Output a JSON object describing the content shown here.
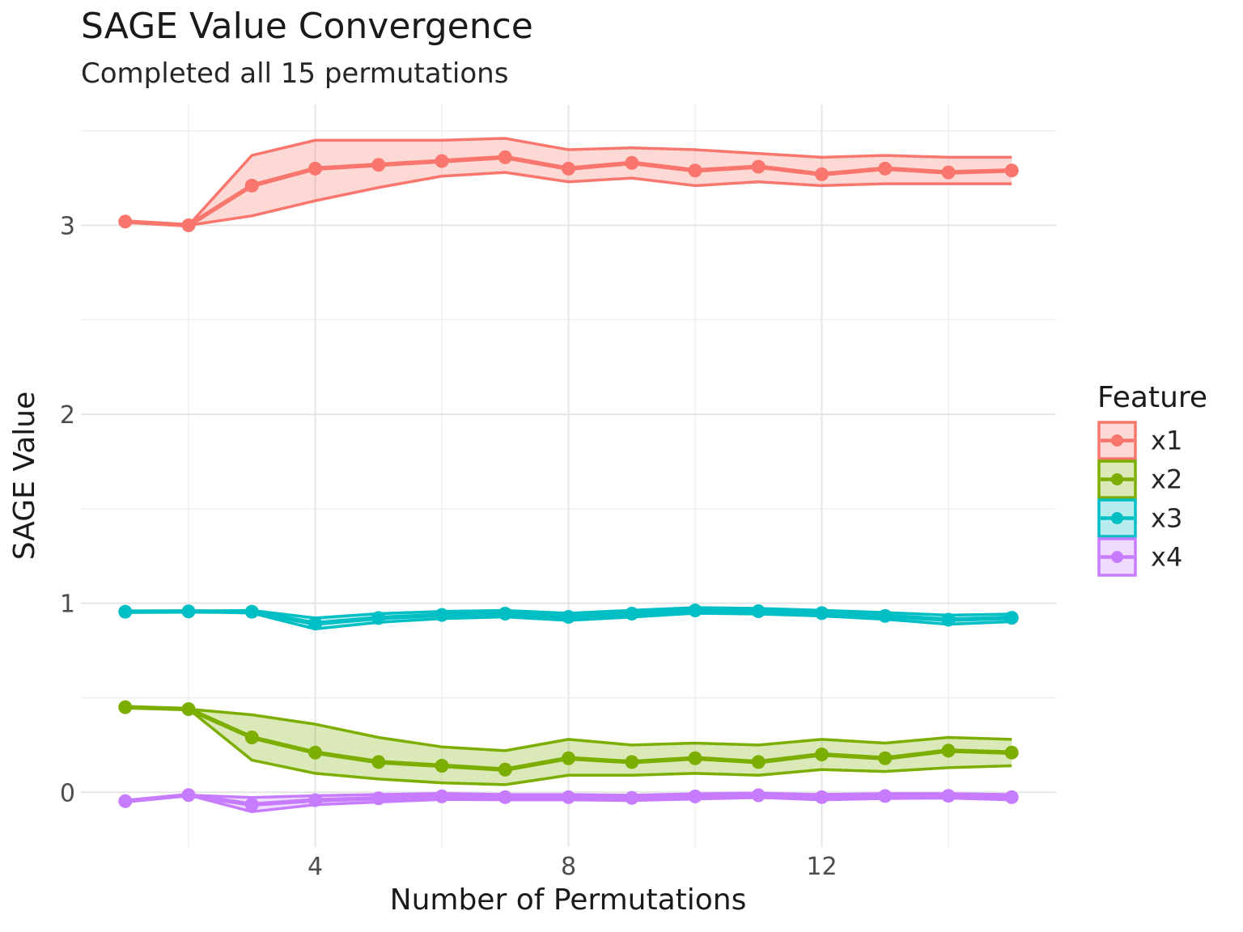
{
  "chart_data": {
    "type": "line",
    "title": "SAGE Value Convergence",
    "subtitle": "Completed all 15 permutations",
    "xlabel": "Number of Permutations",
    "ylabel": "SAGE Value",
    "legend_title": "Feature",
    "legend_position": "right",
    "grid": true,
    "xlim": [
      0.3,
      15.7
    ],
    "ylim": [
      -0.29,
      3.64
    ],
    "x_major_ticks": [
      4,
      8,
      12
    ],
    "x_minor_gridlines": [
      2,
      6,
      10,
      14
    ],
    "y_major_ticks": [
      0,
      1,
      2,
      3
    ],
    "y_minor_gridlines": [
      0.5,
      1.5,
      2.5,
      3.5
    ],
    "x": [
      1,
      2,
      3,
      4,
      5,
      6,
      7,
      8,
      9,
      10,
      11,
      12,
      13,
      14,
      15
    ],
    "series": [
      {
        "name": "x1",
        "color": "#F8766D",
        "mean": [
          3.02,
          3.0,
          3.21,
          3.3,
          3.32,
          3.34,
          3.36,
          3.3,
          3.33,
          3.29,
          3.31,
          3.27,
          3.3,
          3.28,
          3.29
        ],
        "upper": [
          3.02,
          3.0,
          3.37,
          3.45,
          3.45,
          3.45,
          3.46,
          3.4,
          3.41,
          3.4,
          3.38,
          3.36,
          3.37,
          3.36,
          3.36
        ],
        "lower": [
          3.02,
          3.0,
          3.05,
          3.13,
          3.2,
          3.26,
          3.28,
          3.23,
          3.25,
          3.21,
          3.23,
          3.21,
          3.22,
          3.22,
          3.22
        ]
      },
      {
        "name": "x2",
        "color": "#7CAE00",
        "mean": [
          0.45,
          0.44,
          0.29,
          0.21,
          0.16,
          0.14,
          0.12,
          0.18,
          0.16,
          0.18,
          0.16,
          0.2,
          0.18,
          0.22,
          0.21
        ],
        "upper": [
          0.45,
          0.44,
          0.41,
          0.36,
          0.29,
          0.24,
          0.22,
          0.28,
          0.25,
          0.26,
          0.25,
          0.28,
          0.26,
          0.29,
          0.28
        ],
        "lower": [
          0.45,
          0.44,
          0.17,
          0.1,
          0.07,
          0.05,
          0.04,
          0.09,
          0.09,
          0.1,
          0.09,
          0.12,
          0.11,
          0.13,
          0.14
        ]
      },
      {
        "name": "x3",
        "color": "#00BFC4",
        "mean": [
          0.955,
          0.957,
          0.955,
          0.893,
          0.922,
          0.938,
          0.945,
          0.928,
          0.945,
          0.962,
          0.958,
          0.948,
          0.933,
          0.913,
          0.923
        ],
        "upper": [
          0.955,
          0.957,
          0.962,
          0.922,
          0.945,
          0.957,
          0.962,
          0.947,
          0.963,
          0.977,
          0.973,
          0.963,
          0.951,
          0.937,
          0.943
        ],
        "lower": [
          0.955,
          0.957,
          0.948,
          0.864,
          0.899,
          0.919,
          0.928,
          0.909,
          0.927,
          0.947,
          0.943,
          0.933,
          0.915,
          0.889,
          0.903
        ]
      },
      {
        "name": "x4",
        "color": "#C77CFF",
        "mean": [
          -0.047,
          -0.015,
          -0.065,
          -0.042,
          -0.032,
          -0.022,
          -0.026,
          -0.026,
          -0.03,
          -0.022,
          -0.016,
          -0.026,
          -0.02,
          -0.019,
          -0.026
        ],
        "upper": [
          -0.047,
          -0.015,
          -0.028,
          -0.018,
          -0.012,
          -0.006,
          -0.012,
          -0.012,
          -0.016,
          -0.008,
          -0.004,
          -0.012,
          -0.007,
          -0.007,
          -0.012
        ],
        "lower": [
          -0.047,
          -0.015,
          -0.103,
          -0.066,
          -0.052,
          -0.038,
          -0.04,
          -0.04,
          -0.044,
          -0.036,
          -0.028,
          -0.04,
          -0.033,
          -0.031,
          -0.04
        ]
      }
    ]
  },
  "style": {
    "grid_major_color": "#E5E5E5",
    "grid_minor_color": "#F0F0F0",
    "band_opacity": 0.28,
    "tick_color": "#4d4d4d"
  }
}
